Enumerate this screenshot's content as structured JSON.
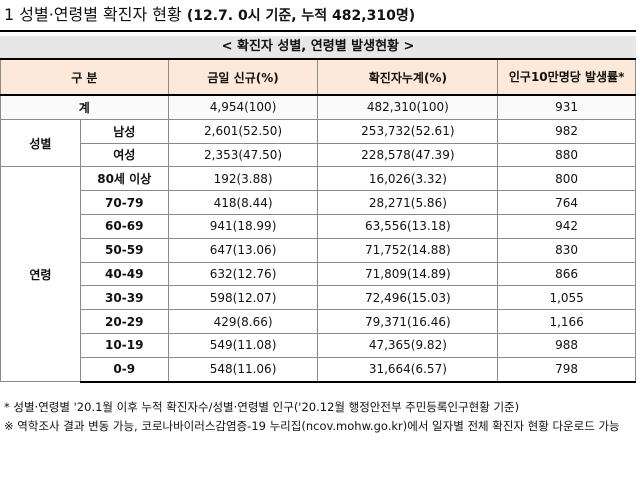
{
  "heading": {
    "number": "1",
    "title": "성별·연령별 확진자 현황",
    "subtitle": "(12.7. 0시 기준, 누적 482,310명)"
  },
  "table_title": "< 확진자 성별, 연령별 발생현황 >",
  "columns": {
    "category": "구 분",
    "new_cases": "금일 신규(%)",
    "cumulative": "확진자누계(%)",
    "rate": "인구10만명당 발생률*"
  },
  "total": {
    "label": "계",
    "new_cases": "4,954(100)",
    "cumulative": "482,310(100)",
    "rate": "931"
  },
  "sex_group": {
    "label": "성별",
    "rows": [
      {
        "label": "남성",
        "new_cases": "2,601(52.50)",
        "cumulative": "253,732(52.61)",
        "rate": "982"
      },
      {
        "label": "여성",
        "new_cases": "2,353(47.50)",
        "cumulative": "228,578(47.39)",
        "rate": "880"
      }
    ]
  },
  "age_group": {
    "label": "연령",
    "rows": [
      {
        "label": "80세 이상",
        "new_cases": "192(3.88)",
        "cumulative": "16,026(3.32)",
        "rate": "800"
      },
      {
        "label": "70-79",
        "new_cases": "418(8.44)",
        "cumulative": "28,271(5.86)",
        "rate": "764"
      },
      {
        "label": "60-69",
        "new_cases": "941(18.99)",
        "cumulative": "63,556(13.18)",
        "rate": "942"
      },
      {
        "label": "50-59",
        "new_cases": "647(13.06)",
        "cumulative": "71,752(14.88)",
        "rate": "830"
      },
      {
        "label": "40-49",
        "new_cases": "632(12.76)",
        "cumulative": "71,809(14.89)",
        "rate": "866"
      },
      {
        "label": "30-39",
        "new_cases": "598(12.07)",
        "cumulative": "72,496(15.03)",
        "rate": "1,055"
      },
      {
        "label": "20-29",
        "new_cases": "429(8.66)",
        "cumulative": "79,371(16.46)",
        "rate": "1,166"
      },
      {
        "label": "10-19",
        "new_cases": "549(11.08)",
        "cumulative": "47,365(9.82)",
        "rate": "988"
      },
      {
        "label": "0-9",
        "new_cases": "548(11.06)",
        "cumulative": "31,664(6.57)",
        "rate": "798"
      }
    ]
  },
  "notes": [
    "* 성별·연령별 '20.1월 이후 누적 확진자수/성별·연령별 인구('20.12월 행정안전부 주민등록인구현황 기준)",
    "※ 역학조사 결과 변동 가능, 코로나바이러스감염증-19 누리집(ncov.mohw.go.kr)에서 일자별 전체 확진자 현황 다운로드 가능"
  ]
}
